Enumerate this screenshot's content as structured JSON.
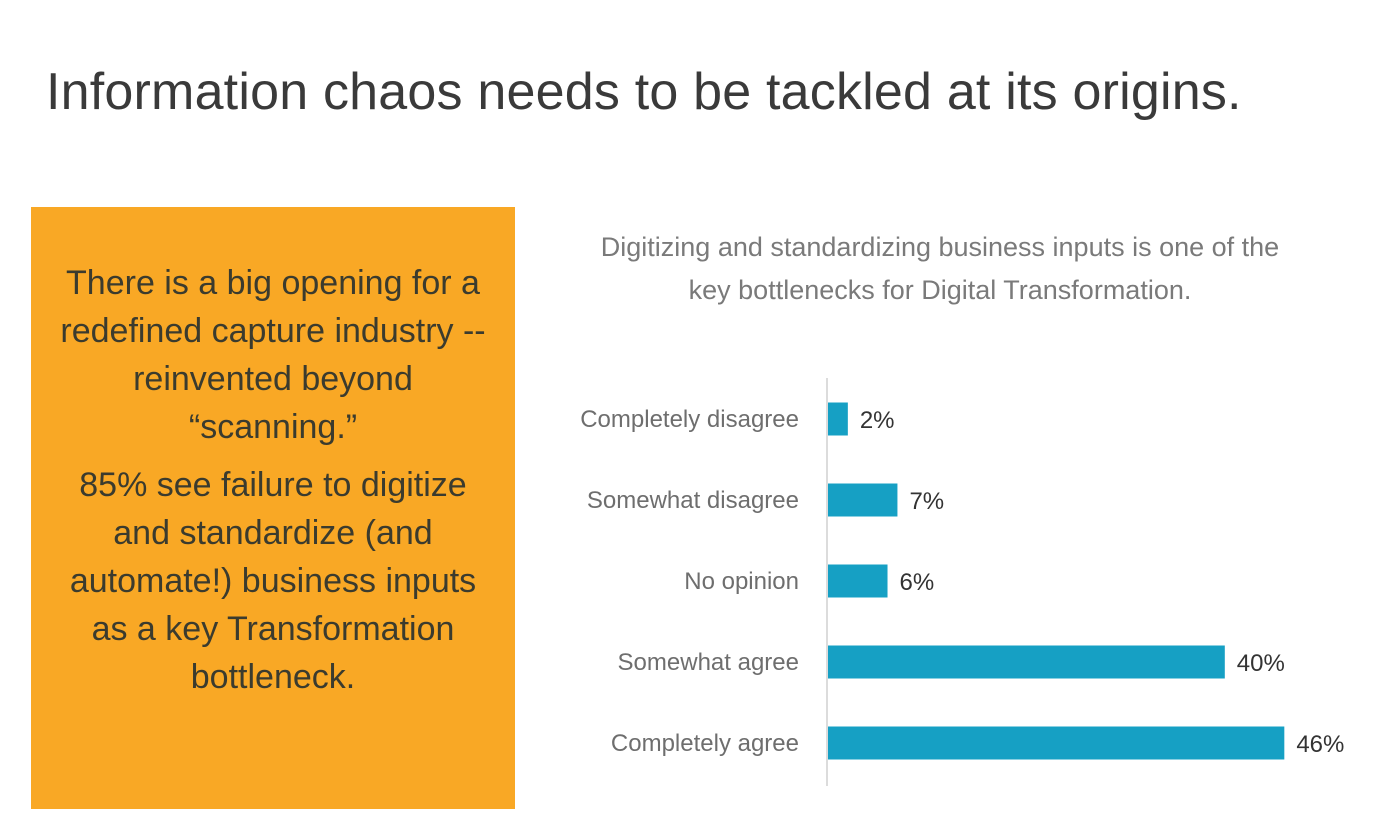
{
  "slide": {
    "title": "Information chaos needs to be tackled at its origins."
  },
  "callout": {
    "paragraph_1": "There is a big opening for a redefined capture industry -- reinvented beyond “scanning.”",
    "paragraph_2": "85% see failure to digitize and standardize (and automate!) business inputs as a key Transformation bottleneck."
  },
  "colors": {
    "callout_bg": "#f9a825",
    "bar": "#16a0c4",
    "axis": "#d0d0d0"
  },
  "chart_data": {
    "type": "bar",
    "orientation": "horizontal",
    "title": "Digitizing and standardizing business inputs is one of the key bottlenecks for Digital Transformation.",
    "categories": [
      "Completely disagree",
      "Somewhat disagree",
      "No opinion",
      "Somewhat agree",
      "Completely agree"
    ],
    "values": [
      2,
      7,
      6,
      40,
      46
    ],
    "value_labels": [
      "2%",
      "7%",
      "6%",
      "40%",
      "46%"
    ],
    "unit": "%",
    "xlim": [
      0,
      50
    ],
    "grid": false,
    "legend": "none"
  }
}
